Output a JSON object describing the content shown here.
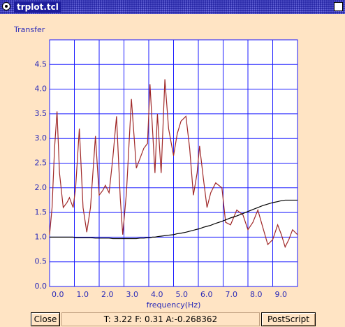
{
  "window": {
    "title": "trplot.tcl"
  },
  "chart_data": {
    "type": "line",
    "y_label": "Transfer",
    "x_label": "frequency(Hz)",
    "x": [
      0,
      0.1,
      0.2,
      0.3,
      0.4,
      0.55,
      0.7,
      0.8,
      0.95,
      1.05,
      1.2,
      1.35,
      1.5,
      1.65,
      1.85,
      2.0,
      2.15,
      2.25,
      2.4,
      2.55,
      2.7,
      2.85,
      2.95,
      3.1,
      3.3,
      3.5,
      3.65,
      3.8,
      3.95,
      4.05,
      4.15,
      4.25,
      4.35,
      4.5,
      4.65,
      4.8,
      5.0,
      5.15,
      5.3,
      5.5,
      5.65,
      5.8,
      5.95,
      6.05,
      6.2,
      6.35,
      6.5,
      6.7,
      6.95,
      7.1,
      7.3,
      7.55,
      7.8,
      8.0,
      8.2,
      8.4,
      8.6,
      8.8,
      9.0,
      9.2,
      9.35,
      9.5,
      9.65,
      9.8,
      10.0
    ],
    "series": [
      {
        "color": "#a02828",
        "values": [
          1.05,
          1.6,
          2.8,
          3.55,
          2.3,
          1.6,
          1.7,
          1.8,
          1.6,
          2.0,
          3.2,
          1.6,
          1.1,
          1.6,
          3.05,
          1.85,
          1.95,
          2.05,
          1.9,
          2.6,
          3.45,
          1.8,
          1.05,
          1.9,
          3.8,
          2.4,
          2.6,
          2.8,
          2.9,
          4.1,
          3.2,
          2.3,
          3.5,
          2.3,
          4.2,
          3.2,
          2.65,
          3.1,
          3.35,
          3.45,
          2.8,
          1.85,
          2.3,
          2.85,
          2.2,
          1.6,
          1.9,
          2.1,
          2.0,
          1.3,
          1.25,
          1.55,
          1.45,
          1.15,
          1.3,
          1.55,
          1.2,
          0.85,
          0.95,
          1.25,
          1.05,
          0.8,
          0.95,
          1.15,
          1.05
        ]
      },
      {
        "color": "#000000",
        "values": [
          1.0,
          1.0,
          1.0,
          1.0,
          1.0,
          1.0,
          1.0,
          1.0,
          1.0,
          0.99,
          0.99,
          0.99,
          0.99,
          0.99,
          0.98,
          0.98,
          0.98,
          0.98,
          0.98,
          0.97,
          0.97,
          0.97,
          0.97,
          0.97,
          0.97,
          0.97,
          0.98,
          0.98,
          0.99,
          0.99,
          1.0,
          1.0,
          1.01,
          1.02,
          1.03,
          1.04,
          1.05,
          1.07,
          1.08,
          1.1,
          1.12,
          1.14,
          1.16,
          1.17,
          1.2,
          1.22,
          1.24,
          1.28,
          1.32,
          1.35,
          1.39,
          1.43,
          1.48,
          1.52,
          1.56,
          1.6,
          1.64,
          1.67,
          1.7,
          1.72,
          1.74,
          1.75,
          1.75,
          1.75,
          1.75
        ]
      }
    ],
    "xlim": [
      0,
      10
    ],
    "ylim": [
      0,
      5
    ],
    "xticks": [
      {
        "value": 0,
        "label": "0.0"
      },
      {
        "value": 1,
        "label": "1.0"
      },
      {
        "value": 2,
        "label": "2.0"
      },
      {
        "value": 3,
        "label": "3.0"
      },
      {
        "value": 4,
        "label": "4.0"
      },
      {
        "value": 5,
        "label": "5.0"
      },
      {
        "value": 6,
        "label": "6.0"
      },
      {
        "value": 7,
        "label": "7.0"
      },
      {
        "value": 8,
        "label": "8.0"
      },
      {
        "value": 9,
        "label": "9.0"
      }
    ],
    "yticks": [
      {
        "value": 0,
        "label": "0.0"
      },
      0.5,
      {
        "value": 1,
        "label": "1.0"
      },
      1.5,
      {
        "value": 2,
        "label": "2.0"
      },
      2.5,
      {
        "value": 3,
        "label": "3.0"
      },
      3.5,
      {
        "value": 4,
        "label": "4.0"
      },
      4.5
    ],
    "grid": true,
    "grid_color": "#1a1aff",
    "tick_color": "#2a2ab8"
  },
  "buttons": {
    "close": "Close",
    "postscript": "PostScript"
  },
  "status": "T: 3.22 F: 0.31 A:-0.268362"
}
